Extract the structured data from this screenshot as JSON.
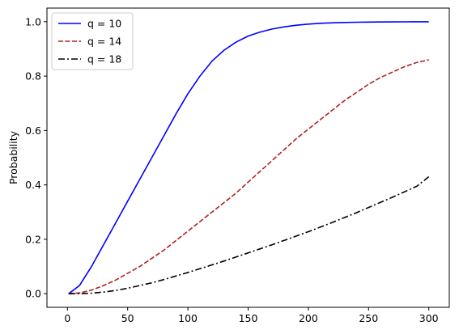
{
  "chart_data": {
    "type": "line",
    "title": "",
    "xlabel": "",
    "ylabel": "Probability",
    "xlim": [
      -17,
      317
    ],
    "ylim": [
      -0.05,
      1.05
    ],
    "x_ticks": [
      0,
      50,
      100,
      150,
      200,
      250,
      300
    ],
    "x_tick_labels": [
      "0",
      "50",
      "100",
      "150",
      "200",
      "250",
      "300"
    ],
    "y_ticks": [
      0.0,
      0.2,
      0.4,
      0.6,
      0.8,
      1.0
    ],
    "y_tick_labels": [
      "0.0",
      "0.2",
      "0.4",
      "0.6",
      "0.8",
      "1.0"
    ],
    "grid": false,
    "legend_position": "top-left",
    "x": [
      1,
      10,
      20,
      30,
      40,
      50,
      60,
      70,
      80,
      90,
      100,
      110,
      120,
      130,
      140,
      150,
      160,
      170,
      180,
      190,
      200,
      210,
      220,
      230,
      240,
      250,
      260,
      270,
      280,
      290,
      300
    ],
    "series": [
      {
        "name": "q = 10",
        "color": "#0000ff",
        "dash": "solid",
        "values": [
          0.0,
          0.03,
          0.1,
          0.18,
          0.26,
          0.34,
          0.42,
          0.5,
          0.58,
          0.66,
          0.735,
          0.8,
          0.855,
          0.895,
          0.925,
          0.947,
          0.962,
          0.973,
          0.981,
          0.987,
          0.991,
          0.994,
          0.996,
          0.997,
          0.998,
          0.9985,
          0.999,
          0.9993,
          0.9995,
          0.9997,
          0.9998
        ]
      },
      {
        "name": "q = 14",
        "color": "#b22222",
        "dash": "dashed",
        "values": [
          0.0,
          0.003,
          0.013,
          0.03,
          0.05,
          0.075,
          0.1,
          0.13,
          0.16,
          0.195,
          0.23,
          0.265,
          0.3,
          0.335,
          0.37,
          0.41,
          0.45,
          0.49,
          0.53,
          0.57,
          0.605,
          0.64,
          0.675,
          0.71,
          0.74,
          0.77,
          0.795,
          0.815,
          0.835,
          0.85,
          0.86
        ]
      },
      {
        "name": "q = 18",
        "color": "#000000",
        "dash": "dashdot",
        "values": [
          0.0,
          0.0005,
          0.002,
          0.006,
          0.012,
          0.02,
          0.03,
          0.04,
          0.052,
          0.065,
          0.078,
          0.092,
          0.106,
          0.12,
          0.135,
          0.15,
          0.165,
          0.18,
          0.196,
          0.212,
          0.228,
          0.245,
          0.262,
          0.28,
          0.298,
          0.317,
          0.336,
          0.355,
          0.375,
          0.395,
          0.43
        ]
      }
    ]
  }
}
